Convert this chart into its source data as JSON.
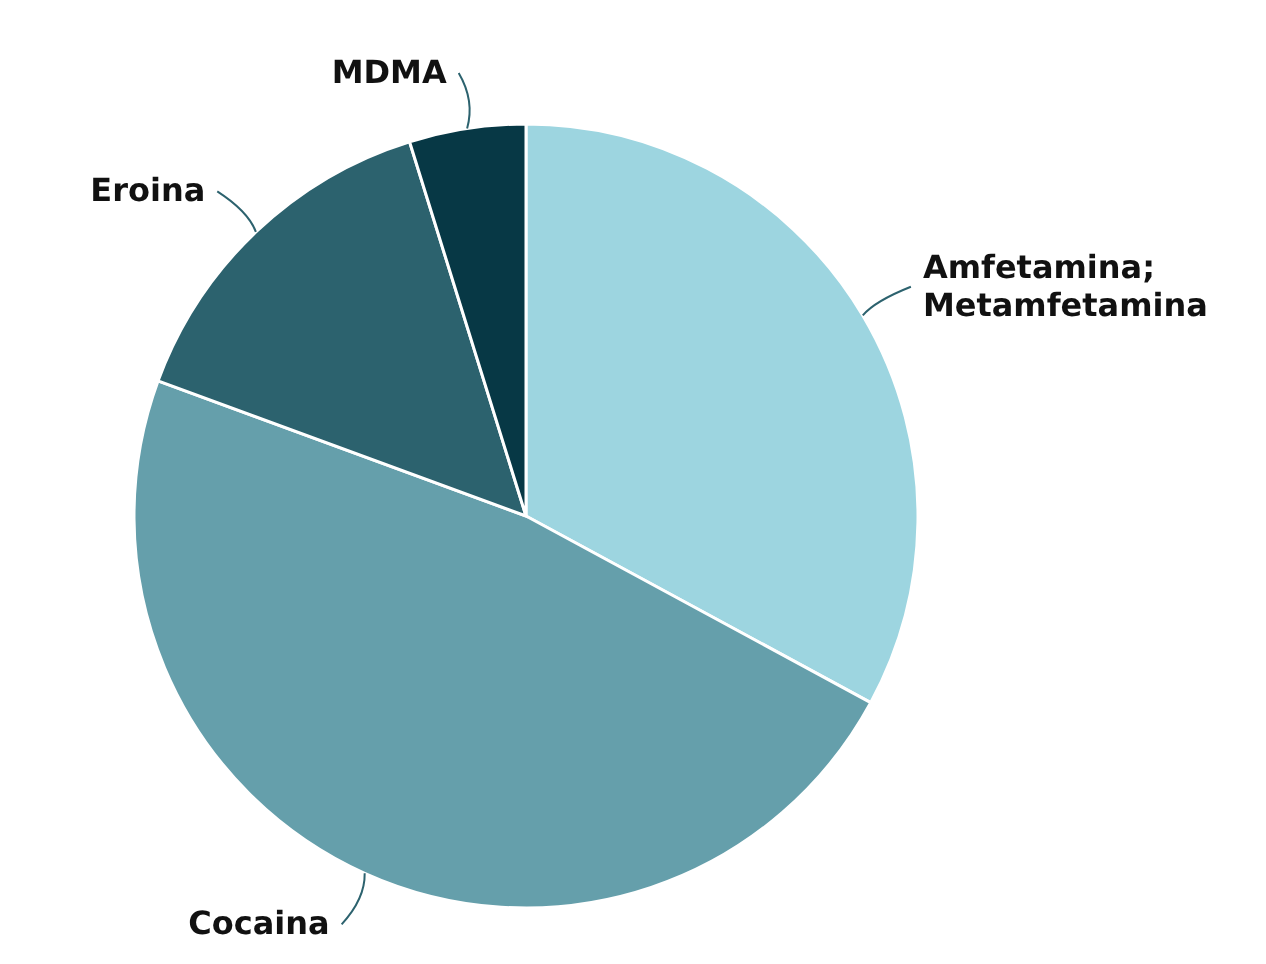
{
  "chart_data": {
    "type": "pie",
    "categories": [
      "Amfetamina; Metamfetamina",
      "Cocaina",
      "Eroina",
      "MDMA"
    ],
    "values": [
      32.9,
      47.7,
      14.6,
      4.8
    ],
    "colors": [
      "#9dd5e0",
      "#659fab",
      "#2c626e",
      "#073845"
    ]
  }
}
